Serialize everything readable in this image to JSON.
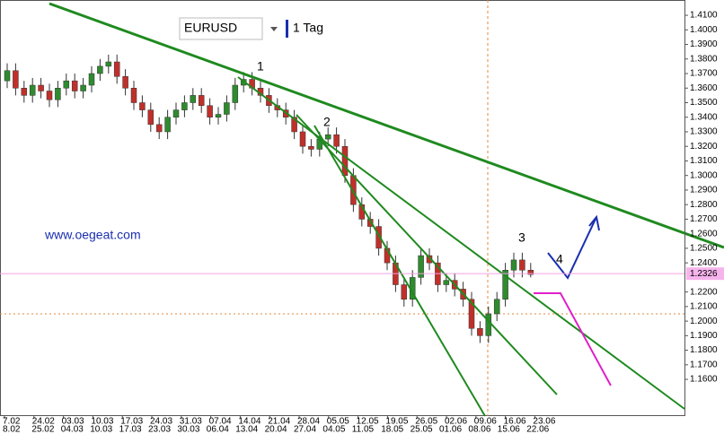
{
  "chart_data": {
    "type": "candlestick",
    "symbol": "EURUSD",
    "timeframe": "1 Tag",
    "watermark": "www.oegeat.com",
    "annotations": [
      "1",
      "2",
      "3",
      "4"
    ],
    "up_color": "#2e8b2e",
    "down_color": "#c0302a",
    "open": [
      1.365,
      1.372,
      1.36,
      1.355,
      1.362,
      1.358,
      1.352,
      1.36,
      1.365,
      1.358,
      1.362,
      1.37,
      1.375,
      1.378,
      1.368,
      1.36,
      1.35,
      1.345,
      1.335,
      1.33,
      1.34,
      1.345,
      1.35,
      1.355,
      1.348,
      1.34,
      1.342,
      1.35,
      1.362,
      1.366,
      1.36,
      1.355,
      1.348,
      1.345,
      1.34,
      1.33,
      1.32,
      1.318,
      1.325,
      1.328,
      1.32,
      1.3,
      1.28,
      1.27,
      1.265,
      1.25,
      1.24,
      1.225,
      1.215,
      1.23,
      1.245,
      1.24,
      1.225,
      1.228,
      1.222,
      1.215,
      1.195,
      1.19,
      1.205,
      1.215,
      1.235,
      1.242,
      1.235
    ],
    "high": [
      1.377,
      1.377,
      1.365,
      1.367,
      1.367,
      1.363,
      1.365,
      1.37,
      1.37,
      1.367,
      1.375,
      1.38,
      1.383,
      1.383,
      1.373,
      1.365,
      1.355,
      1.35,
      1.34,
      1.345,
      1.35,
      1.355,
      1.36,
      1.36,
      1.353,
      1.347,
      1.355,
      1.367,
      1.371,
      1.371,
      1.365,
      1.36,
      1.353,
      1.35,
      1.345,
      1.335,
      1.325,
      1.33,
      1.333,
      1.333,
      1.325,
      1.305,
      1.285,
      1.275,
      1.27,
      1.255,
      1.245,
      1.23,
      1.235,
      1.25,
      1.25,
      1.245,
      1.233,
      1.233,
      1.227,
      1.22,
      1.2,
      1.21,
      1.22,
      1.24,
      1.247,
      1.247,
      1.24
    ],
    "low": [
      1.36,
      1.355,
      1.35,
      1.35,
      1.353,
      1.347,
      1.347,
      1.355,
      1.353,
      1.353,
      1.357,
      1.365,
      1.37,
      1.363,
      1.355,
      1.345,
      1.34,
      1.33,
      1.325,
      1.325,
      1.335,
      1.34,
      1.345,
      1.343,
      1.335,
      1.335,
      1.337,
      1.345,
      1.357,
      1.355,
      1.35,
      1.343,
      1.34,
      1.335,
      1.325,
      1.315,
      1.313,
      1.313,
      1.32,
      1.315,
      1.295,
      1.275,
      1.265,
      1.26,
      1.245,
      1.235,
      1.22,
      1.21,
      1.21,
      1.225,
      1.235,
      1.22,
      1.22,
      1.217,
      1.21,
      1.19,
      1.185,
      1.185,
      1.2,
      1.21,
      1.23,
      1.23,
      1.23
    ],
    "close": [
      1.372,
      1.36,
      1.355,
      1.362,
      1.358,
      1.352,
      1.36,
      1.365,
      1.358,
      1.362,
      1.37,
      1.375,
      1.378,
      1.368,
      1.36,
      1.35,
      1.345,
      1.335,
      1.33,
      1.34,
      1.345,
      1.35,
      1.355,
      1.348,
      1.34,
      1.342,
      1.35,
      1.362,
      1.366,
      1.36,
      1.355,
      1.348,
      1.345,
      1.34,
      1.33,
      1.32,
      1.318,
      1.325,
      1.328,
      1.32,
      1.3,
      1.28,
      1.27,
      1.265,
      1.25,
      1.24,
      1.225,
      1.215,
      1.23,
      1.245,
      1.24,
      1.225,
      1.228,
      1.222,
      1.215,
      1.195,
      1.19,
      1.205,
      1.215,
      1.235,
      1.242,
      1.235,
      1.232
    ],
    "last_price": {
      "value": 1.2326,
      "label": "1.2326"
    },
    "ylim": [
      1.1348,
      1.4205
    ],
    "yticks": [
      {
        "value": 1.41,
        "label": "1.4100"
      },
      {
        "value": 1.4,
        "label": "1.4000"
      },
      {
        "value": 1.39,
        "label": "1.3900"
      },
      {
        "value": 1.38,
        "label": "1.3800"
      },
      {
        "value": 1.37,
        "label": "1.3700"
      },
      {
        "value": 1.36,
        "label": "1.3600"
      },
      {
        "value": 1.35,
        "label": "1.3500"
      },
      {
        "value": 1.34,
        "label": "1.3400"
      },
      {
        "value": 1.33,
        "label": "1.3300"
      },
      {
        "value": 1.32,
        "label": "1.3200"
      },
      {
        "value": 1.31,
        "label": "1.3100"
      },
      {
        "value": 1.3,
        "label": "1.3000"
      },
      {
        "value": 1.29,
        "label": "1.2900"
      },
      {
        "value": 1.28,
        "label": "1.2800"
      },
      {
        "value": 1.27,
        "label": "1.2700"
      },
      {
        "value": 1.26,
        "label": "1.2600"
      },
      {
        "value": 1.25,
        "label": "1.2500"
      },
      {
        "value": 1.24,
        "label": "1.2400"
      },
      {
        "value": 1.22,
        "label": "1.2200"
      },
      {
        "value": 1.21,
        "label": "1.2100"
      },
      {
        "value": 1.2,
        "label": "1.2000"
      },
      {
        "value": 1.19,
        "label": "1.1900"
      },
      {
        "value": 1.18,
        "label": "1.1800"
      },
      {
        "value": 1.17,
        "label": "1.1700"
      },
      {
        "value": 1.16,
        "label": "1.1600"
      }
    ],
    "x_labels_top": [
      "7.02",
      "24.02",
      "03.03",
      "10.03",
      "17.03",
      "24.03",
      "31.03",
      "07.04",
      "14.04",
      "21.04",
      "28.04",
      "05.05",
      "12.05",
      "19.05",
      "26.05",
      "02.06",
      "09.06",
      "16.06",
      "23.06"
    ],
    "x_labels_bottom": [
      "8.02",
      "25.02",
      "04.03",
      "10.03",
      "17.03",
      "23.03",
      "30.03",
      "06.04",
      "13.04",
      "20.04",
      "27.04",
      "04.05",
      "11.05",
      "18.05",
      "25.05",
      "01.06",
      "08.06",
      "15.06",
      "22.06"
    ]
  }
}
